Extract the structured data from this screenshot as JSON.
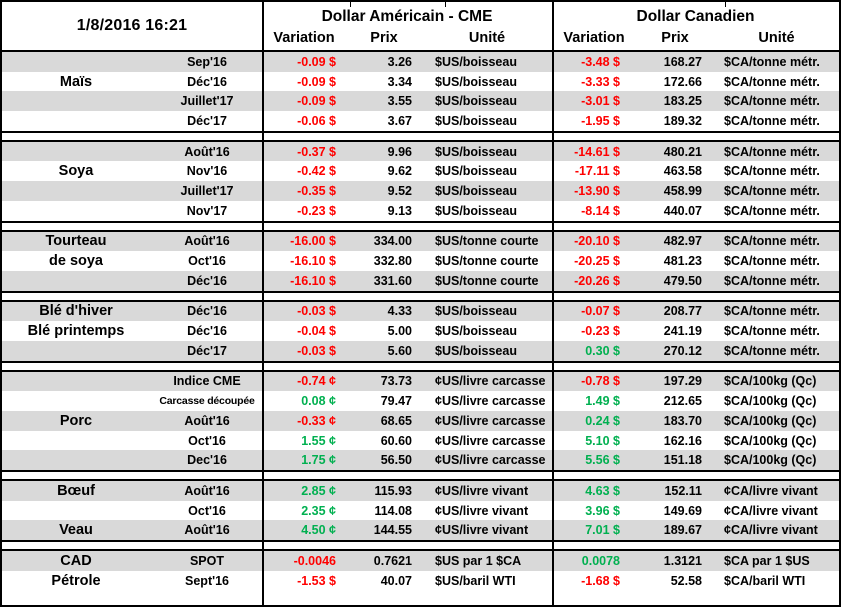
{
  "header": {
    "timestamp": "1/8/2016 16:21",
    "us_title": "Dollar Américain - CME",
    "ca_title": "Dollar Canadien",
    "columns": {
      "variation": "Variation",
      "prix": "Prix",
      "unite": "Unité"
    }
  },
  "colors": {
    "negative": "#FF0000",
    "positive": "#00B050",
    "row_stripe": "#D9D9D9",
    "border": "#000000"
  },
  "groups": [
    {
      "key": "mais",
      "rows": [
        {
          "label": "",
          "month": "Sep'16",
          "uvar": "-0.09 $",
          "udir": "neg",
          "uprix": "3.26",
          "uunit": "$US/boisseau",
          "cvar": "-3.48 $",
          "cdir": "neg",
          "cprix": "168.27",
          "cunit": "$CA/tonne métr."
        },
        {
          "label": "Maïs",
          "month": "Déc'16",
          "uvar": "-0.09 $",
          "udir": "neg",
          "uprix": "3.34",
          "uunit": "$US/boisseau",
          "cvar": "-3.33 $",
          "cdir": "neg",
          "cprix": "172.66",
          "cunit": "$CA/tonne métr."
        },
        {
          "label": "",
          "month": "Juillet'17",
          "uvar": "-0.09 $",
          "udir": "neg",
          "uprix": "3.55",
          "uunit": "$US/boisseau",
          "cvar": "-3.01 $",
          "cdir": "neg",
          "cprix": "183.25",
          "cunit": "$CA/tonne métr."
        },
        {
          "label": "",
          "month": "Déc'17",
          "uvar": "-0.06 $",
          "udir": "neg",
          "uprix": "3.67",
          "uunit": "$US/boisseau",
          "cvar": "-1.95 $",
          "cdir": "neg",
          "cprix": "189.32",
          "cunit": "$CA/tonne métr."
        }
      ]
    },
    {
      "key": "soya",
      "rows": [
        {
          "label": "",
          "month": "Août'16",
          "uvar": "-0.37 $",
          "udir": "neg",
          "uprix": "9.96",
          "uunit": "$US/boisseau",
          "cvar": "-14.61 $",
          "cdir": "neg",
          "cprix": "480.21",
          "cunit": "$CA/tonne métr."
        },
        {
          "label": "Soya",
          "month": "Nov'16",
          "uvar": "-0.42 $",
          "udir": "neg",
          "uprix": "9.62",
          "uunit": "$US/boisseau",
          "cvar": "-17.11 $",
          "cdir": "neg",
          "cprix": "463.58",
          "cunit": "$CA/tonne métr."
        },
        {
          "label": "",
          "month": "Juillet'17",
          "uvar": "-0.35 $",
          "udir": "neg",
          "uprix": "9.52",
          "uunit": "$US/boisseau",
          "cvar": "-13.90 $",
          "cdir": "neg",
          "cprix": "458.99",
          "cunit": "$CA/tonne métr."
        },
        {
          "label": "",
          "month": "Nov'17",
          "uvar": "-0.23 $",
          "udir": "neg",
          "uprix": "9.13",
          "uunit": "$US/boisseau",
          "cvar": "-8.14 $",
          "cdir": "neg",
          "cprix": "440.07",
          "cunit": "$CA/tonne métr."
        }
      ]
    },
    {
      "key": "tourteau-de-soya",
      "rows": [
        {
          "label": "Tourteau",
          "month": "Août'16",
          "uvar": "-16.00 $",
          "udir": "neg",
          "uprix": "334.00",
          "uunit": "$US/tonne courte",
          "cvar": "-20.10 $",
          "cdir": "neg",
          "cprix": "482.97",
          "cunit": "$CA/tonne métr."
        },
        {
          "label": "de soya",
          "month": "Oct'16",
          "uvar": "-16.10 $",
          "udir": "neg",
          "uprix": "332.80",
          "uunit": "$US/tonne courte",
          "cvar": "-20.25 $",
          "cdir": "neg",
          "cprix": "481.23",
          "cunit": "$CA/tonne métr."
        },
        {
          "label": "",
          "month": "Déc'16",
          "uvar": "-16.10 $",
          "udir": "neg",
          "uprix": "331.60",
          "uunit": "$US/tonne courte",
          "cvar": "-20.26 $",
          "cdir": "neg",
          "cprix": "479.50",
          "cunit": "$CA/tonne métr."
        }
      ]
    },
    {
      "key": "ble",
      "rows": [
        {
          "label": "Blé d'hiver",
          "month": "Déc'16",
          "uvar": "-0.03 $",
          "udir": "neg",
          "uprix": "4.33",
          "uunit": "$US/boisseau",
          "cvar": "-0.07 $",
          "cdir": "neg",
          "cprix": "208.77",
          "cunit": "$CA/tonne métr."
        },
        {
          "label": "Blé printemps",
          "month": "Déc'16",
          "uvar": "-0.04 $",
          "udir": "neg",
          "uprix": "5.00",
          "uunit": "$US/boisseau",
          "cvar": "-0.23 $",
          "cdir": "neg",
          "cprix": "241.19",
          "cunit": "$CA/tonne métr."
        },
        {
          "label": "",
          "month": "Déc'17",
          "uvar": "-0.03 $",
          "udir": "neg",
          "uprix": "5.60",
          "uunit": "$US/boisseau",
          "cvar": "0.30 $",
          "cdir": "pos",
          "cprix": "270.12",
          "cunit": "$CA/tonne métr."
        }
      ]
    },
    {
      "key": "porc",
      "rows": [
        {
          "label": "",
          "month": "Indice CME",
          "uvar": "-0.74 ¢",
          "udir": "neg",
          "uprix": "73.73",
          "uunit": "¢US/livre carcasse",
          "cvar": "-0.78 $",
          "cdir": "neg",
          "cprix": "197.29",
          "cunit": "$CA/100kg (Qc)"
        },
        {
          "label": "",
          "month": "Carcasse découpée",
          "small": true,
          "uvar": "0.08 ¢",
          "udir": "pos",
          "uprix": "79.47",
          "uunit": "¢US/livre carcasse",
          "cvar": "1.49 $",
          "cdir": "pos",
          "cprix": "212.65",
          "cunit": "$CA/100kg (Qc)"
        },
        {
          "label": "Porc",
          "month": "Août'16",
          "uvar": "-0.33 ¢",
          "udir": "neg",
          "uprix": "68.65",
          "uunit": "¢US/livre carcasse",
          "cvar": "0.24 $",
          "cdir": "pos",
          "cprix": "183.70",
          "cunit": "$CA/100kg (Qc)"
        },
        {
          "label": "",
          "month": "Oct'16",
          "uvar": "1.55 ¢",
          "udir": "pos",
          "uprix": "60.60",
          "uunit": "¢US/livre carcasse",
          "cvar": "5.10 $",
          "cdir": "pos",
          "cprix": "162.16",
          "cunit": "$CA/100kg (Qc)"
        },
        {
          "label": "",
          "month": "Dec'16",
          "uvar": "1.75 ¢",
          "udir": "pos",
          "uprix": "56.50",
          "uunit": "¢US/livre carcasse",
          "cvar": "5.56 $",
          "cdir": "pos",
          "cprix": "151.18",
          "cunit": "$CA/100kg (Qc)"
        }
      ]
    },
    {
      "key": "boeuf-veau",
      "rows": [
        {
          "label": "Bœuf",
          "month": "Août'16",
          "uvar": "2.85 ¢",
          "udir": "pos",
          "uprix": "115.93",
          "uunit": "¢US/livre vivant",
          "cvar": "4.63 $",
          "cdir": "pos",
          "cprix": "152.11",
          "cunit": "¢CA/livre vivant"
        },
        {
          "label": "",
          "month": "Oct'16",
          "uvar": "2.35 ¢",
          "udir": "pos",
          "uprix": "114.08",
          "uunit": "¢US/livre vivant",
          "cvar": "3.96 $",
          "cdir": "pos",
          "cprix": "149.69",
          "cunit": "¢CA/livre vivant"
        },
        {
          "label": "Veau",
          "month": "Août'16",
          "uvar": "4.50 ¢",
          "udir": "pos",
          "uprix": "144.55",
          "uunit": "¢US/livre vivant",
          "cvar": "7.01 $",
          "cdir": "pos",
          "cprix": "189.67",
          "cunit": "¢CA/livre vivant"
        }
      ]
    },
    {
      "key": "cad-petrole",
      "rows": [
        {
          "label": "CAD",
          "month": "SPOT",
          "uvar": "-0.0046",
          "udir": "neg",
          "uprix": "0.7621",
          "uunit": "$US par 1 $CA",
          "cvar": "0.0078",
          "cdir": "pos",
          "cprix": "1.3121",
          "cunit": "$CA par 1 $US"
        },
        {
          "label": "Pétrole",
          "month": "Sept'16",
          "uvar": "-1.53 $",
          "udir": "neg",
          "uprix": "40.07",
          "uunit": "$US/baril WTI",
          "cvar": "-1.68 $",
          "cdir": "neg",
          "cprix": "52.58",
          "cunit": "$CA/baril WTI"
        }
      ]
    }
  ]
}
